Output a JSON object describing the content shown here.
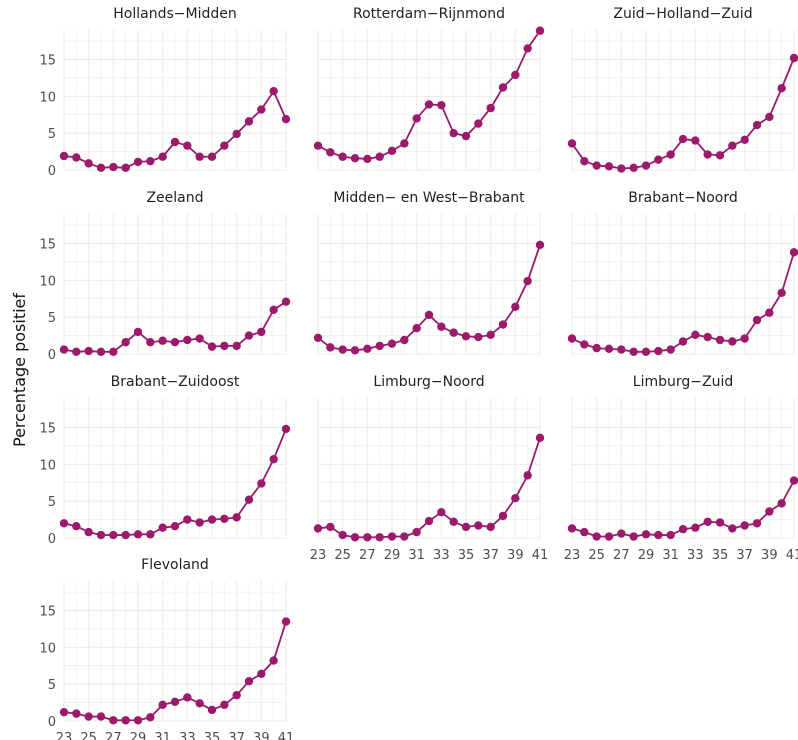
{
  "chart_data": {
    "type": "line",
    "ylabel": "Percentage positief",
    "xlabel": "",
    "x": [
      23,
      24,
      25,
      26,
      27,
      28,
      29,
      30,
      31,
      32,
      33,
      34,
      35,
      36,
      37,
      38,
      39,
      40,
      41
    ],
    "x_ticks": [
      23,
      25,
      27,
      29,
      31,
      33,
      35,
      37,
      39,
      41
    ],
    "y_ticks": [
      0,
      5,
      10,
      15
    ],
    "ylim": [
      0,
      19
    ],
    "grid": true,
    "line_color": "#9c1a6c",
    "panels": [
      {
        "name": "Hollands−Midden",
        "values": [
          1.9,
          1.7,
          0.9,
          0.3,
          0.4,
          0.3,
          1.1,
          1.2,
          1.8,
          3.8,
          3.3,
          1.8,
          1.8,
          3.3,
          4.9,
          6.6,
          8.2,
          10.7,
          6.9
        ]
      },
      {
        "name": "Rotterdam−Rijnmond",
        "values": [
          3.3,
          2.4,
          1.8,
          1.6,
          1.5,
          1.8,
          2.6,
          3.6,
          7.0,
          8.9,
          8.8,
          5.0,
          4.6,
          6.3,
          8.4,
          11.2,
          12.9,
          16.5,
          18.9
        ]
      },
      {
        "name": "Zuid−Holland−Zuid",
        "values": [
          3.6,
          1.2,
          0.6,
          0.5,
          0.2,
          0.3,
          0.6,
          1.4,
          2.1,
          4.2,
          4.0,
          2.1,
          2.0,
          3.3,
          4.1,
          6.1,
          7.2,
          11.1,
          15.2
        ]
      },
      {
        "name": "Zeeland",
        "values": [
          0.6,
          0.3,
          0.4,
          0.3,
          0.3,
          1.6,
          3.0,
          1.6,
          1.8,
          1.6,
          1.9,
          2.1,
          1.0,
          1.1,
          1.1,
          2.5,
          3.0,
          6.0,
          7.1
        ]
      },
      {
        "name": "Midden− en West−Brabant",
        "values": [
          2.2,
          0.9,
          0.6,
          0.5,
          0.7,
          1.1,
          1.4,
          1.9,
          3.5,
          5.3,
          3.7,
          2.9,
          2.4,
          2.3,
          2.6,
          4.0,
          6.4,
          9.9,
          14.8
        ]
      },
      {
        "name": "Brabant−Noord",
        "values": [
          2.1,
          1.3,
          0.8,
          0.7,
          0.6,
          0.3,
          0.3,
          0.4,
          0.6,
          1.7,
          2.6,
          2.3,
          1.9,
          1.7,
          2.1,
          4.6,
          5.6,
          8.3,
          13.8
        ]
      },
      {
        "name": "Brabant−Zuidoost",
        "values": [
          2.0,
          1.6,
          0.8,
          0.4,
          0.4,
          0.4,
          0.5,
          0.5,
          1.4,
          1.6,
          2.5,
          2.1,
          2.5,
          2.6,
          2.8,
          5.2,
          7.4,
          10.7,
          14.8
        ]
      },
      {
        "name": "Limburg−Noord",
        "values": [
          1.3,
          1.5,
          0.4,
          0.1,
          0.1,
          0.1,
          0.2,
          0.2,
          0.8,
          2.3,
          3.5,
          2.2,
          1.5,
          1.7,
          1.5,
          3.0,
          5.4,
          8.5,
          13.6
        ]
      },
      {
        "name": "Limburg−Zuid",
        "values": [
          1.3,
          0.8,
          0.2,
          0.2,
          0.6,
          0.2,
          0.5,
          0.4,
          0.4,
          1.2,
          1.4,
          2.2,
          2.1,
          1.3,
          1.7,
          2.0,
          3.6,
          4.7,
          7.8
        ]
      },
      {
        "name": "Flevoland",
        "values": [
          1.2,
          1.0,
          0.6,
          0.6,
          0.1,
          0.1,
          0.1,
          0.5,
          2.2,
          2.6,
          3.2,
          2.4,
          1.5,
          2.2,
          3.5,
          5.4,
          6.4,
          8.2,
          13.5
        ]
      }
    ]
  }
}
